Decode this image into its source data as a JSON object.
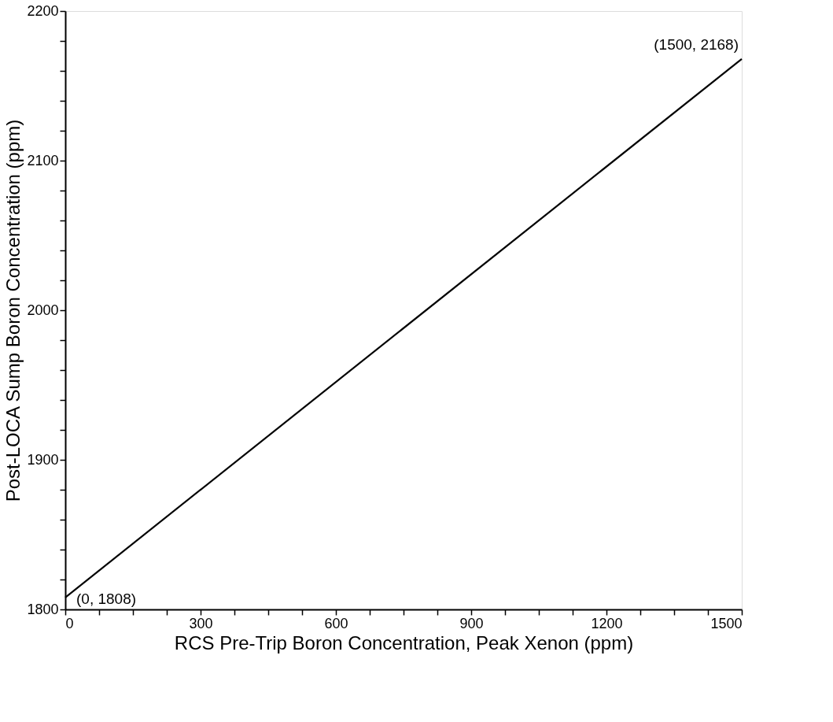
{
  "chart_data": {
    "type": "line",
    "xlabel": "RCS Pre-Trip Boron Concentration, Peak Xenon (ppm)",
    "ylabel": "Post-LOCA Sump Boron Concentration (ppm)",
    "x": [
      0,
      1500
    ],
    "series": [
      {
        "color": "#000000",
        "values": [
          1808,
          2168
        ]
      }
    ],
    "xlim": [
      0,
      1500
    ],
    "ylim": [
      1800,
      2200
    ],
    "xticks": [
      0,
      {
        "value": 75,
        "label": null
      },
      {
        "value": 150,
        "label": null
      },
      {
        "value": 225,
        "label": null
      },
      300,
      {
        "value": 375,
        "label": null
      },
      {
        "value": 450,
        "label": null
      },
      {
        "value": 525,
        "label": null
      },
      600,
      {
        "value": 675,
        "label": null
      },
      {
        "value": 750,
        "label": null
      },
      {
        "value": 825,
        "label": null
      },
      900,
      {
        "value": 975,
        "label": null
      },
      {
        "value": 1050,
        "label": null
      },
      {
        "value": 1125,
        "label": null
      },
      1200,
      {
        "value": 1275,
        "label": null
      },
      {
        "value": 1350,
        "label": null
      },
      {
        "value": 1425,
        "label": null
      },
      1500
    ],
    "yticks": [
      1800,
      {
        "value": 1820,
        "label": null
      },
      {
        "value": 1840,
        "label": null
      },
      {
        "value": 1860,
        "label": null
      },
      {
        "value": 1880,
        "label": null
      },
      1900,
      {
        "value": 1920,
        "label": null
      },
      {
        "value": 1940,
        "label": null
      },
      {
        "value": 1960,
        "label": null
      },
      {
        "value": 1980,
        "label": null
      },
      2000,
      {
        "value": 2020,
        "label": null
      },
      {
        "value": 2040,
        "label": null
      },
      {
        "value": 2060,
        "label": null
      },
      {
        "value": 2080,
        "label": null
      },
      2100,
      {
        "value": 2120,
        "label": null
      },
      {
        "value": 2140,
        "label": null
      },
      {
        "value": 2160,
        "label": null
      },
      {
        "value": 2180,
        "label": null
      },
      2200
    ],
    "annotations": [
      {
        "text": "(0, 1808)",
        "x": 0,
        "y": 1808
      },
      {
        "text": "(1500, 2168)",
        "x": 1500,
        "y": 2168
      }
    ],
    "grid": false,
    "marker": "none",
    "line_style": "solid"
  }
}
